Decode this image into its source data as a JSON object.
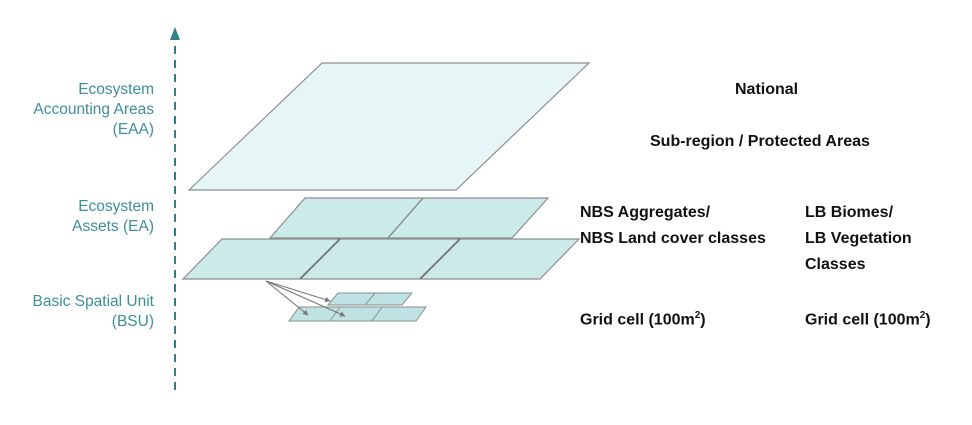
{
  "left_labels": {
    "eaa": [
      "Ecosystem",
      "Accounting Areas",
      "(EAA)"
    ],
    "ea": [
      "Ecosystem",
      "Assets (EA)"
    ],
    "bsu": [
      "Basic Spatial Unit",
      "(BSU)"
    ]
  },
  "right_labels": {
    "national": "National",
    "subregion": "Sub-region / Protected Areas",
    "nbs": [
      "NBS Aggregates/",
      "NBS Land cover classes"
    ],
    "lb": [
      "LB Biomes/",
      "LB Vegetation",
      "Classes"
    ],
    "grid_nbs": {
      "text": "Grid cell (100m",
      "sup": "2",
      "close": ")"
    },
    "grid_lb": {
      "text": "Grid cell (100m",
      "sup": "2",
      "close": ")"
    }
  },
  "colors": {
    "axis": "#2f8089",
    "label": "#3d8f96",
    "plane_large": "#e6f5f5",
    "plane_mid": "#cdeaea",
    "plane_small": "#bfe3e3",
    "edge": "#8a8f90"
  }
}
